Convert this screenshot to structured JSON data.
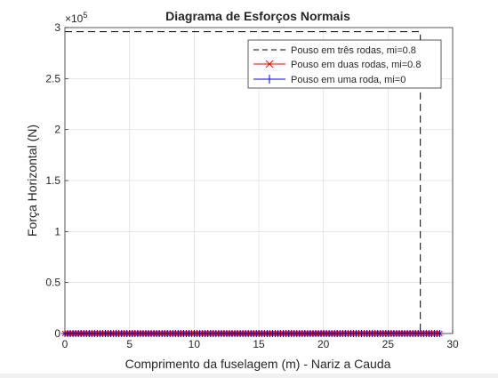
{
  "chart_data": {
    "type": "line",
    "title": "Diagrama de Esforços Normais",
    "xlabel": "Comprimento da fuselagem (m) - Nariz a Cauda",
    "ylabel": "Força Horizontal (N)",
    "xlim": [
      0,
      30
    ],
    "ylim": [
      0,
      300000
    ],
    "y_exponent_label": "×10",
    "y_exponent_power": "5",
    "xticks": [
      0,
      5,
      10,
      15,
      20,
      25,
      30
    ],
    "xtick_labels": [
      "0",
      "5",
      "10",
      "15",
      "20",
      "25",
      "30"
    ],
    "yticks": [
      0,
      0.5,
      1,
      1.5,
      2,
      2.5,
      3
    ],
    "ytick_labels": [
      "0",
      "0.5",
      "1",
      "1.5",
      "2",
      "2.5",
      "3"
    ],
    "grid": true,
    "legend_position": "top-right",
    "series": [
      {
        "name": "Pouso em três rodas, mi=0.8",
        "color": "#000000",
        "style": "dashed",
        "marker": "none",
        "x": [
          0,
          27.5,
          27.5
        ],
        "y": [
          296000,
          296000,
          0
        ]
      },
      {
        "name": "Pouso em duas rodas, mi=0.8",
        "color": "#ff0000",
        "style": "solid",
        "marker": "x",
        "x": [
          0,
          29
        ],
        "y": [
          0,
          0
        ],
        "marker_count": 140
      },
      {
        "name": "Pouso em uma roda, mi=0",
        "color": "#0000ff",
        "style": "solid",
        "marker": "+",
        "x": [
          0,
          29
        ],
        "y": [
          0,
          0
        ],
        "marker_count": 140
      }
    ]
  }
}
